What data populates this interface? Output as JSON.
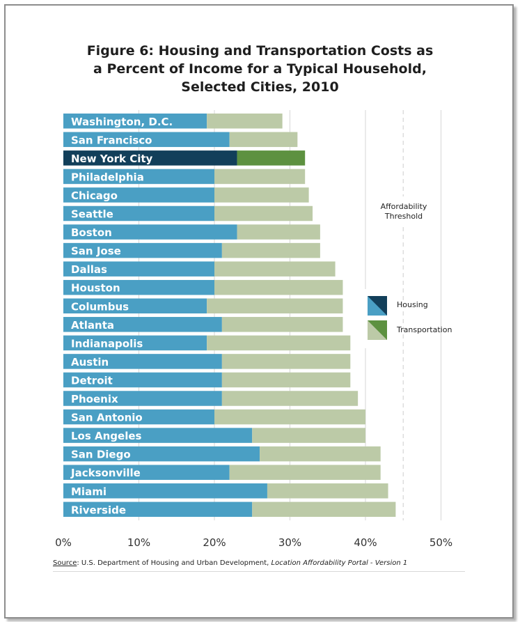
{
  "chart_data": {
    "type": "bar",
    "orientation": "horizontal",
    "stacked": true,
    "title_lines": [
      "Figure 6: Housing and Transportation Costs as",
      "a Percent of Income for a Typical Household,",
      "Selected Cities, 2010"
    ],
    "categories": [
      "Washington, D.C.",
      "San Francisco",
      "New York City",
      "Philadelphia",
      "Chicago",
      "Seattle",
      "Boston",
      "San Jose",
      "Dallas",
      "Houston",
      "Columbus",
      "Atlanta",
      "Indianapolis",
      "Austin",
      "Detroit",
      "Phoenix",
      "San Antonio",
      "Los Angeles",
      "San Diego",
      "Jacksonville",
      "Miami",
      "Riverside"
    ],
    "highlight_category": "New York City",
    "series": [
      {
        "name": "Housing",
        "values": [
          19,
          22,
          23,
          20,
          20,
          20,
          23,
          21,
          20,
          20,
          19,
          21,
          19,
          21,
          21,
          21,
          20,
          25,
          26,
          22,
          27,
          25
        ]
      },
      {
        "name": "Transportation",
        "values": [
          10,
          9,
          9,
          12,
          12.5,
          13,
          11,
          13,
          16,
          17,
          18,
          16,
          19,
          17,
          17,
          18,
          20,
          15,
          16,
          20,
          16,
          19
        ]
      }
    ],
    "xlim": [
      0,
      50
    ],
    "xticks": [
      "0%",
      "10%",
      "20%",
      "30%",
      "40%",
      "50%"
    ],
    "threshold_value": 45,
    "threshold_label": [
      "Affordability",
      "Threshold"
    ],
    "colors": {
      "housing": "#4a9fc4",
      "transportation": "#bccaa7",
      "highlight_housing": "#123f5a",
      "highlight_transportation": "#5d9140",
      "grid": "#d6d6d6",
      "label_text": "#ffffff"
    },
    "legend": {
      "position": "right",
      "items": [
        "Housing",
        "Transportation"
      ]
    },
    "grid": true
  },
  "source": {
    "label": "Source",
    "text": ": U.S. Department of Housing and Urban Development, ",
    "italic": "Location Affordability Portal - Version 1"
  }
}
